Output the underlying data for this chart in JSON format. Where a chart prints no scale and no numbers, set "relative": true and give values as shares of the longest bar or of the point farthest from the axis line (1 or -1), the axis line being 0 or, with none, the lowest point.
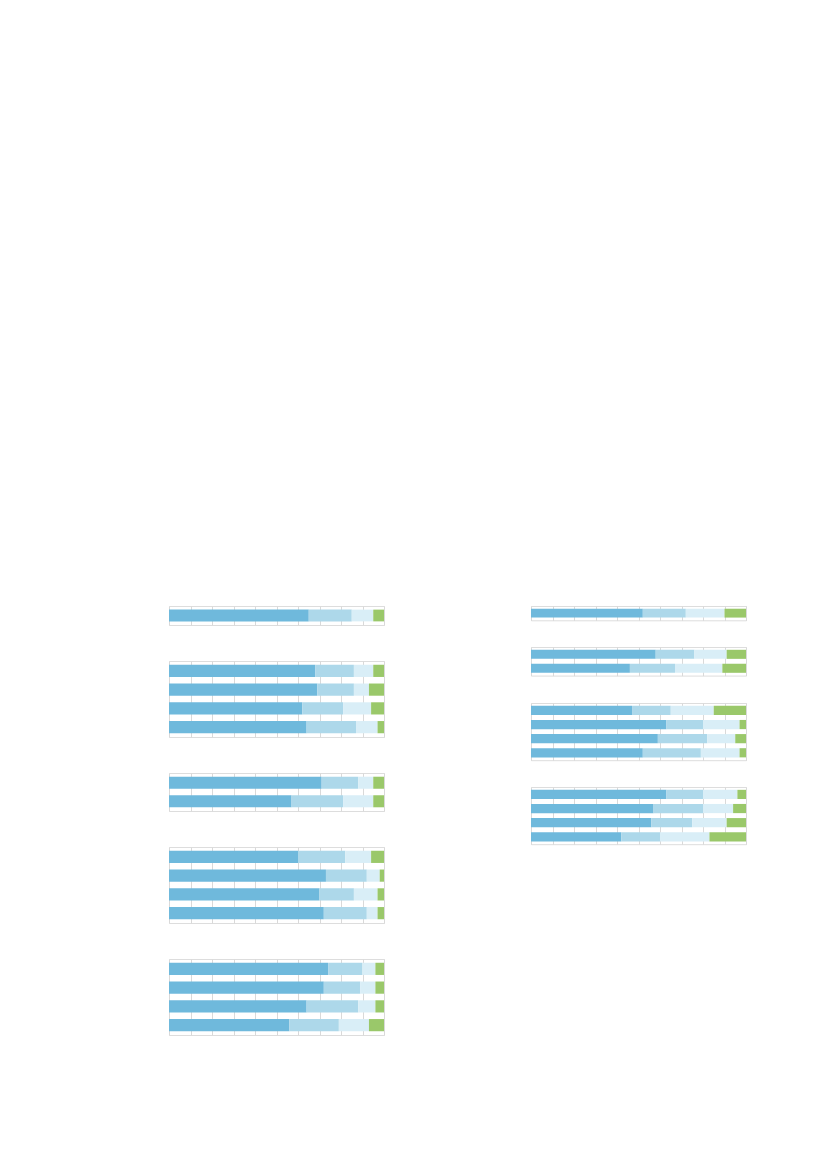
{
  "chart_data": [
    {
      "type": "bar",
      "orientation": "horizontal",
      "stacked": true,
      "relative": true,
      "grid": "x",
      "categories": [
        null
      ],
      "series": [
        {
          "color": "#6fb9dc",
          "values": [
            0.65
          ]
        },
        {
          "color": "#add8ea",
          "values": [
            0.2
          ]
        },
        {
          "color": "#d9eef7",
          "values": [
            0.1
          ]
        },
        {
          "color": "#9ac86a",
          "values": [
            0.05
          ]
        }
      ]
    },
    {
      "type": "bar",
      "orientation": "horizontal",
      "stacked": true,
      "relative": true,
      "grid": "x",
      "categories": [
        null,
        null,
        null,
        null
      ],
      "series": [
        {
          "color": "#6fb9dc",
          "values": [
            0.68,
            0.69,
            0.62,
            0.64
          ]
        },
        {
          "color": "#add8ea",
          "values": [
            0.18,
            0.17,
            0.19,
            0.23
          ]
        },
        {
          "color": "#d9eef7",
          "values": [
            0.09,
            0.07,
            0.13,
            0.1
          ]
        },
        {
          "color": "#9ac86a",
          "values": [
            0.05,
            0.07,
            0.06,
            0.03
          ]
        }
      ]
    },
    {
      "type": "bar",
      "orientation": "horizontal",
      "stacked": true,
      "relative": true,
      "grid": "x",
      "categories": [
        null,
        null
      ],
      "series": [
        {
          "color": "#6fb9dc",
          "values": [
            0.71,
            0.57
          ]
        },
        {
          "color": "#add8ea",
          "values": [
            0.17,
            0.24
          ]
        },
        {
          "color": "#d9eef7",
          "values": [
            0.07,
            0.14
          ]
        },
        {
          "color": "#9ac86a",
          "values": [
            0.05,
            0.05
          ]
        }
      ]
    },
    {
      "type": "bar",
      "orientation": "horizontal",
      "stacked": true,
      "relative": true,
      "grid": "x",
      "categories": [
        null,
        null,
        null,
        null
      ],
      "series": [
        {
          "color": "#6fb9dc",
          "values": [
            0.6,
            0.73,
            0.7,
            0.72
          ]
        },
        {
          "color": "#add8ea",
          "values": [
            0.22,
            0.19,
            0.16,
            0.2
          ]
        },
        {
          "color": "#d9eef7",
          "values": [
            0.12,
            0.06,
            0.11,
            0.05
          ]
        },
        {
          "color": "#9ac86a",
          "values": [
            0.06,
            0.02,
            0.03,
            0.03
          ]
        }
      ]
    },
    {
      "type": "bar",
      "orientation": "horizontal",
      "stacked": true,
      "relative": true,
      "grid": "x",
      "categories": [
        null,
        null,
        null,
        null
      ],
      "series": [
        {
          "color": "#6fb9dc",
          "values": [
            0.74,
            0.72,
            0.64,
            0.56
          ]
        },
        {
          "color": "#add8ea",
          "values": [
            0.16,
            0.17,
            0.24,
            0.23
          ]
        },
        {
          "color": "#d9eef7",
          "values": [
            0.06,
            0.07,
            0.08,
            0.14
          ]
        },
        {
          "color": "#9ac86a",
          "values": [
            0.04,
            0.04,
            0.04,
            0.07
          ]
        }
      ]
    },
    {
      "type": "bar",
      "orientation": "horizontal",
      "stacked": true,
      "relative": true,
      "grid": "x",
      "categories": [
        null
      ],
      "series": [
        {
          "color": "#6fb9dc",
          "values": [
            0.52
          ]
        },
        {
          "color": "#add8ea",
          "values": [
            0.2
          ]
        },
        {
          "color": "#d9eef7",
          "values": [
            0.18
          ]
        },
        {
          "color": "#9ac86a",
          "values": [
            0.1
          ]
        }
      ]
    },
    {
      "type": "bar",
      "orientation": "horizontal",
      "stacked": true,
      "relative": true,
      "grid": "x",
      "categories": [
        null,
        null
      ],
      "series": [
        {
          "color": "#6fb9dc",
          "values": [
            0.58,
            0.46
          ]
        },
        {
          "color": "#add8ea",
          "values": [
            0.18,
            0.21
          ]
        },
        {
          "color": "#d9eef7",
          "values": [
            0.15,
            0.22
          ]
        },
        {
          "color": "#9ac86a",
          "values": [
            0.09,
            0.11
          ]
        }
      ]
    },
    {
      "type": "bar",
      "orientation": "horizontal",
      "stacked": true,
      "relative": true,
      "grid": "x",
      "categories": [
        null,
        null,
        null,
        null
      ],
      "series": [
        {
          "color": "#6fb9dc",
          "values": [
            0.47,
            0.63,
            0.59,
            0.52
          ]
        },
        {
          "color": "#add8ea",
          "values": [
            0.18,
            0.17,
            0.23,
            0.27
          ]
        },
        {
          "color": "#d9eef7",
          "values": [
            0.2,
            0.17,
            0.13,
            0.18
          ]
        },
        {
          "color": "#9ac86a",
          "values": [
            0.15,
            0.03,
            0.05,
            0.03
          ]
        }
      ]
    },
    {
      "type": "bar",
      "orientation": "horizontal",
      "stacked": true,
      "relative": true,
      "grid": "x",
      "categories": [
        null,
        null,
        null,
        null
      ],
      "series": [
        {
          "color": "#6fb9dc",
          "values": [
            0.63,
            0.57,
            0.56,
            0.42
          ]
        },
        {
          "color": "#add8ea",
          "values": [
            0.17,
            0.23,
            0.19,
            0.18
          ]
        },
        {
          "color": "#d9eef7",
          "values": [
            0.16,
            0.14,
            0.16,
            0.23
          ]
        },
        {
          "color": "#9ac86a",
          "values": [
            0.04,
            0.06,
            0.09,
            0.17
          ]
        }
      ]
    }
  ]
}
